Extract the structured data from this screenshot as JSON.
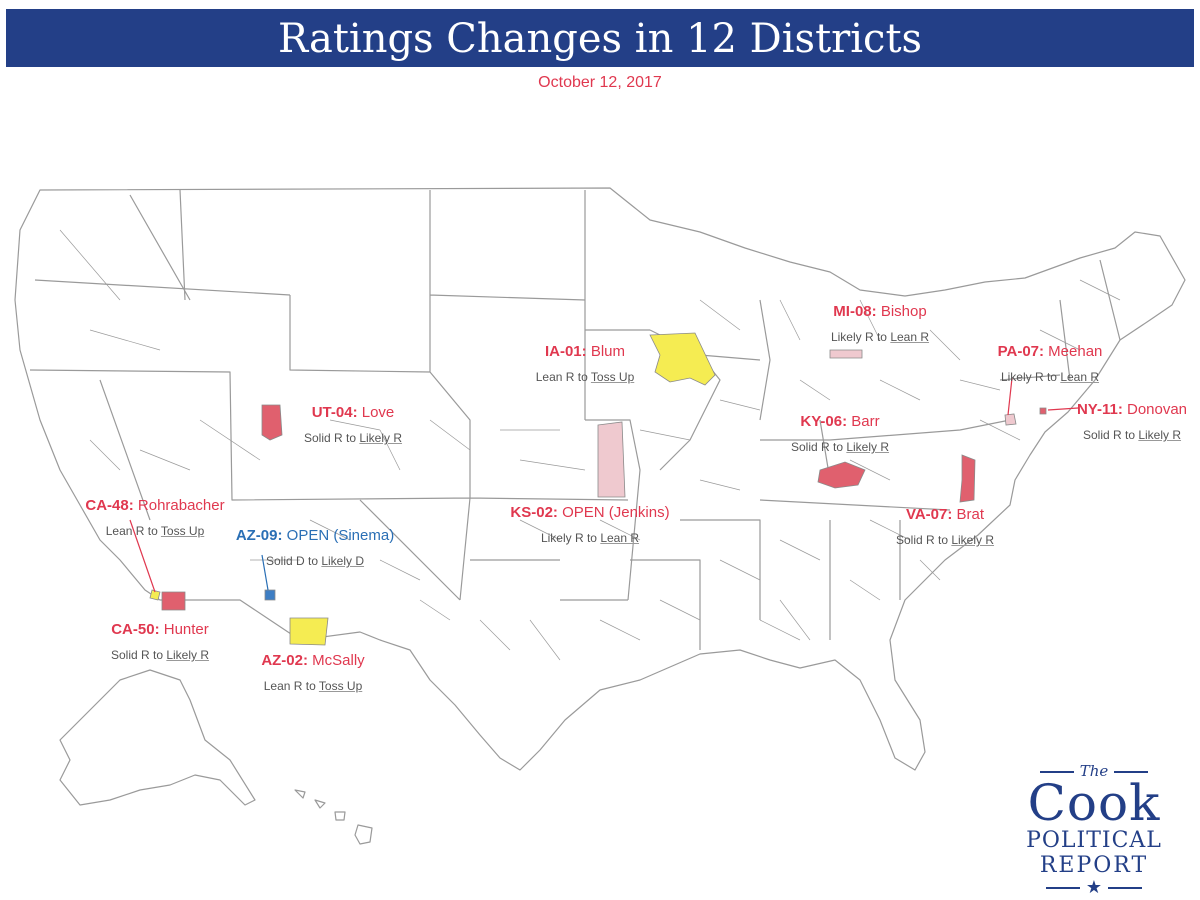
{
  "header": {
    "title": "Ratings Changes in 12 Districts",
    "date": "October 12, 2017"
  },
  "colors": {
    "title_bg": "#233f87",
    "republican_text": "#e0384f",
    "democrat_text": "#2a6fb5",
    "solid_to_likely_r": "#e0606e",
    "likely_to_lean_r": "#efc9cf",
    "lean_to_tossup": "#f5ec52"
  },
  "districts": [
    {
      "code": "UT-04:",
      "name": "Love",
      "from": "Solid R to",
      "to": "Likely R",
      "party": "rep"
    },
    {
      "code": "IA-01:",
      "name": "Blum",
      "from": "Lean R to",
      "to": "Toss Up",
      "party": "rep"
    },
    {
      "code": "MI-08:",
      "name": "Bishop",
      "from": "Likely R to",
      "to": "Lean R",
      "party": "rep"
    },
    {
      "code": "PA-07:",
      "name": "Meehan",
      "from": "Likely R to",
      "to": "Lean R",
      "party": "rep"
    },
    {
      "code": "NY-11:",
      "name": "Donovan",
      "from": "Solid R to",
      "to": "Likely R",
      "party": "rep"
    },
    {
      "code": "KY-06:",
      "name": "Barr",
      "from": "Solid R to",
      "to": "Likely R",
      "party": "rep"
    },
    {
      "code": "KS-02:",
      "name": "OPEN (Jenkins)",
      "from": "Likely R to",
      "to": "Lean R",
      "party": "rep"
    },
    {
      "code": "VA-07:",
      "name": "Brat",
      "from": "Solid R to",
      "to": "Likely R",
      "party": "rep"
    },
    {
      "code": "CA-48:",
      "name": "Rohrabacher",
      "from": "Lean R to",
      "to": "Toss Up",
      "party": "rep"
    },
    {
      "code": "AZ-09:",
      "name": "OPEN (Sinema)",
      "from": "Solid D to",
      "to": "Likely D",
      "party": "dem"
    },
    {
      "code": "CA-50:",
      "name": "Hunter",
      "from": "Solid R to",
      "to": "Likely R",
      "party": "rep"
    },
    {
      "code": "AZ-02:",
      "name": "McSally",
      "from": "Lean R to",
      "to": "Toss Up",
      "party": "rep"
    }
  ],
  "logo": {
    "the": "The",
    "cook": "Cook",
    "political": "POLITICAL",
    "report": "REPORT",
    "star": "★"
  }
}
